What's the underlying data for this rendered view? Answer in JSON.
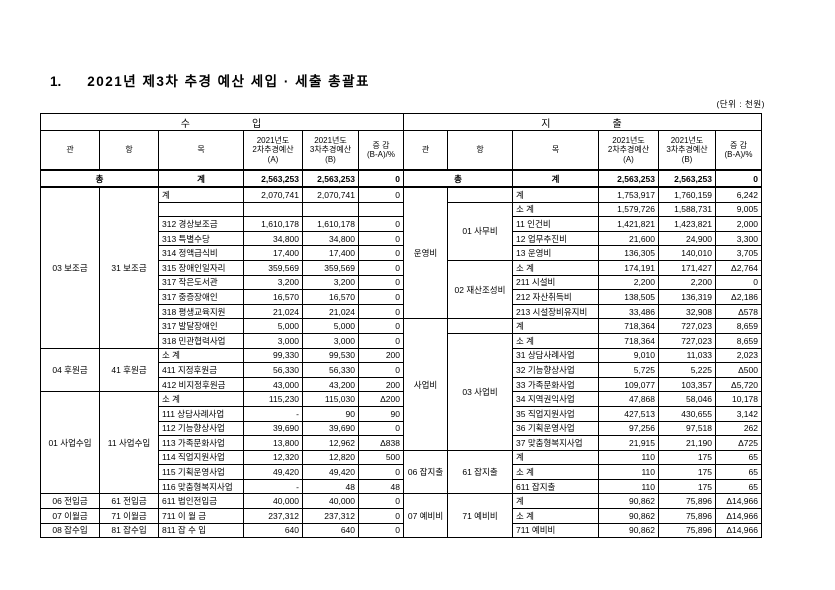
{
  "page": {
    "title_no": "1.",
    "title_text": "2021년 제3차 추경 예산 세입 · 세출 총괄표",
    "unit_note": "(단위 : 천원)"
  },
  "columns": {
    "gwan": "관",
    "hang": "항",
    "mok": "목",
    "col_a": "2021년도\n2차추경예산\n(A)",
    "col_b": "2021년도\n3차추경예산\n(B)",
    "diff": "증 감\n(B-A)/%"
  },
  "income": {
    "band_title": "수　　　　　입",
    "total": {
      "gwan": "총",
      "mok": "계",
      "a": "2,563,253",
      "b": "2,563,253",
      "d": "0"
    },
    "sections": [
      {
        "gwan": "03 보조금",
        "hang": [
          {
            "label": "31 보조금",
            "span": 11
          }
        ],
        "rows": [
          {
            "mok": "계",
            "a": "2,070,741",
            "b": "2,070,741",
            "d": "0"
          },
          {
            "mok": "",
            "a": "",
            "b": "",
            "d": ""
          },
          {
            "mok": "312 경상보조금",
            "a": "1,610,178",
            "b": "1,610,178",
            "d": "0"
          },
          {
            "mok": "313 특별수당",
            "a": "34,800",
            "b": "34,800",
            "d": "0"
          },
          {
            "mok": "314 정액급식비",
            "a": "17,400",
            "b": "17,400",
            "d": "0"
          },
          {
            "mok": "315 장애인일자리",
            "a": "359,569",
            "b": "359,569",
            "d": "0"
          },
          {
            "mok": "317 작은도서관",
            "a": "3,200",
            "b": "3,200",
            "d": "0"
          },
          {
            "mok": "317 중증장애인",
            "a": "16,570",
            "b": "16,570",
            "d": "0"
          },
          {
            "mok": "318 평생교육지원",
            "a": "21,024",
            "b": "21,024",
            "d": "0"
          },
          {
            "mok": "317 발달장애인",
            "a": "5,000",
            "b": "5,000",
            "d": "0"
          },
          {
            "mok": "318 민관협력사업",
            "a": "3,000",
            "b": "3,000",
            "d": "0"
          }
        ]
      },
      {
        "gwan": "04 후원금",
        "hang": [
          {
            "label": "41 후원금",
            "span": 3
          }
        ],
        "rows": [
          {
            "mok": "소    계",
            "a": "99,330",
            "b": "99,530",
            "d": "200"
          },
          {
            "mok": "411 지정후원금",
            "a": "56,330",
            "b": "56,330",
            "d": "0"
          },
          {
            "mok": "412 비지정후원금",
            "a": "43,000",
            "b": "43,200",
            "d": "200"
          }
        ]
      },
      {
        "gwan": "01 사업수입",
        "hang": [
          {
            "label": "11 사업수입",
            "span": 7
          }
        ],
        "rows": [
          {
            "mok": "소    계",
            "a": "115,230",
            "b": "115,030",
            "d": "Δ200"
          },
          {
            "mok": "111 상담사례사업",
            "a": "-",
            "b": "90",
            "d": "90"
          },
          {
            "mok": "112 기능향상사업",
            "a": "39,690",
            "b": "39,690",
            "d": "0"
          },
          {
            "mok": "113 가족문화사업",
            "a": "13,800",
            "b": "12,962",
            "d": "Δ838"
          },
          {
            "mok": "114 직업지원사업",
            "a": "12,320",
            "b": "12,820",
            "d": "500"
          },
          {
            "mok": "115 기획운영사업",
            "a": "49,420",
            "b": "49,420",
            "d": "0"
          },
          {
            "mok": "116 맞춤형복지사업",
            "a": "-",
            "b": "48",
            "d": "48"
          }
        ]
      },
      {
        "gwan": "06 전입금",
        "hang": [
          {
            "label": "61 전입금",
            "span": 1
          }
        ],
        "rows": [
          {
            "mok": "611 법인전입금",
            "a": "40,000",
            "b": "40,000",
            "d": "0"
          }
        ]
      },
      {
        "gwan": "07 이월금",
        "hang": [
          {
            "label": "71 이월금",
            "span": 1
          }
        ],
        "rows": [
          {
            "mok": "711 이 월 금",
            "a": "237,312",
            "b": "237,312",
            "d": "0"
          }
        ]
      },
      {
        "gwan": "08 잡수입",
        "hang": [
          {
            "label": "81 잡수입",
            "span": 1
          }
        ],
        "rows": [
          {
            "mok": "811 잡 수 입",
            "a": "640",
            "b": "640",
            "d": "0"
          }
        ]
      }
    ]
  },
  "expense": {
    "band_title": "지　　　　　출",
    "total": {
      "gwan": "총",
      "mok": "계",
      "a": "2,563,253",
      "b": "2,563,253",
      "d": "0"
    },
    "sections": [
      {
        "gwan": "운영비",
        "hang": [
          {
            "label": "",
            "span": 1
          },
          {
            "label": "01 사무비",
            "span": 4
          },
          {
            "label": "02 재산조성비",
            "span": 4
          }
        ],
        "rows": [
          {
            "mok": "계",
            "a": "1,753,917",
            "b": "1,760,159",
            "d": "6,242"
          },
          {
            "mok": "소    계",
            "a": "1,579,726",
            "b": "1,588,731",
            "d": "9,005"
          },
          {
            "mok": "11 인건비",
            "a": "1,421,821",
            "b": "1,423,821",
            "d": "2,000"
          },
          {
            "mok": "12 업무추진비",
            "a": "21,600",
            "b": "24,900",
            "d": "3,300"
          },
          {
            "mok": "13 운영비",
            "a": "136,305",
            "b": "140,010",
            "d": "3,705"
          },
          {
            "mok": "소    계",
            "a": "174,191",
            "b": "171,427",
            "d": "Δ2,764"
          },
          {
            "mok": "211 시설비",
            "a": "2,200",
            "b": "2,200",
            "d": "0"
          },
          {
            "mok": "212 자산취득비",
            "a": "138,505",
            "b": "136,319",
            "d": "Δ2,186"
          },
          {
            "mok": "213 시설장비유지비",
            "a": "33,486",
            "b": "32,908",
            "d": "Δ578"
          }
        ]
      },
      {
        "gwan": "사업비",
        "hang": [
          {
            "label": "",
            "span": 1
          },
          {
            "label": "03 사업비",
            "span": 8
          }
        ],
        "rows": [
          {
            "mok": "계",
            "a": "718,364",
            "b": "727,023",
            "d": "8,659"
          },
          {
            "mok": "소    계",
            "a": "718,364",
            "b": "727,023",
            "d": "8,659"
          },
          {
            "mok": "31 상담사례사업",
            "a": "9,010",
            "b": "11,033",
            "d": "2,023"
          },
          {
            "mok": "32 기능향상사업",
            "a": "5,725",
            "b": "5,225",
            "d": "Δ500"
          },
          {
            "mok": "33 가족문화사업",
            "a": "109,077",
            "b": "103,357",
            "d": "Δ5,720"
          },
          {
            "mok": "34 지역권익사업",
            "a": "47,868",
            "b": "58,046",
            "d": "10,178"
          },
          {
            "mok": "35 직업지원사업",
            "a": "427,513",
            "b": "430,655",
            "d": "3,142"
          },
          {
            "mok": "36 기획운영사업",
            "a": "97,256",
            "b": "97,518",
            "d": "262"
          },
          {
            "mok": "37 맞춤형복지사업",
            "a": "21,915",
            "b": "21,190",
            "d": "Δ725"
          }
        ]
      },
      {
        "gwan": "06 잡지출",
        "hang": [
          {
            "label": "61 잡지출",
            "span": 3
          }
        ],
        "rows": [
          {
            "mok": "계",
            "a": "110",
            "b": "175",
            "d": "65"
          },
          {
            "mok": "소    계",
            "a": "110",
            "b": "175",
            "d": "65"
          },
          {
            "mok": "611 잡지출",
            "a": "110",
            "b": "175",
            "d": "65"
          }
        ]
      },
      {
        "gwan": "07 예비비",
        "hang": [
          {
            "label": "71 예비비",
            "span": 3
          }
        ],
        "rows": [
          {
            "mok": "계",
            "a": "90,862",
            "b": "75,896",
            "d": "Δ14,966"
          },
          {
            "mok": "소    계",
            "a": "90,862",
            "b": "75,896",
            "d": "Δ14,966"
          },
          {
            "mok": "711 예비비",
            "a": "90,862",
            "b": "75,896",
            "d": "Δ14,966"
          }
        ]
      }
    ]
  }
}
